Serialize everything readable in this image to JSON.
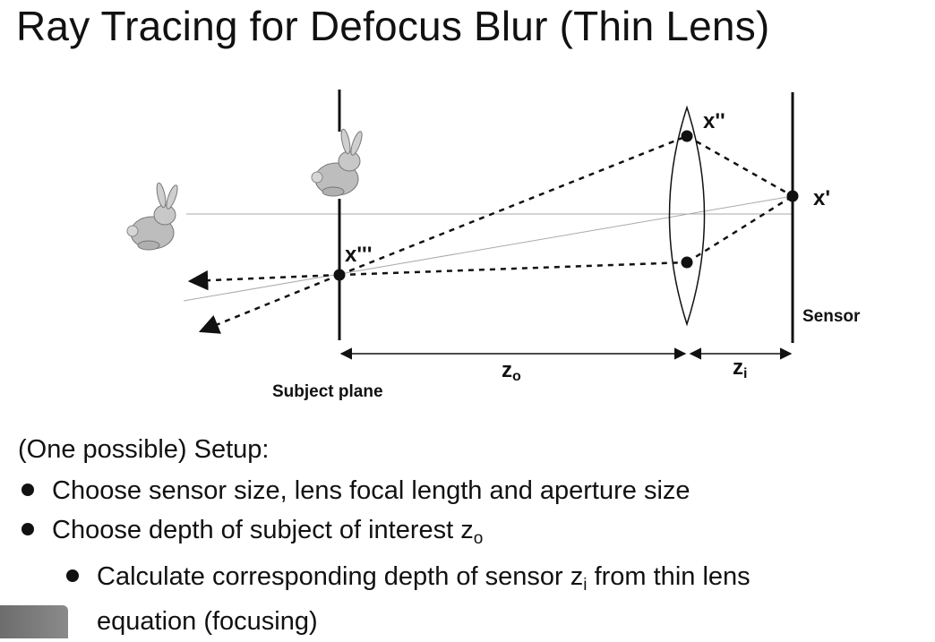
{
  "title": "Ray Tracing for Defocus Blur (Thin Lens)",
  "diagram": {
    "points": {
      "x_triple": "x'''",
      "x_double": "x''",
      "x_prime": "x'"
    },
    "labels": {
      "sensor": "Sensor",
      "subject_plane": "Subject plane",
      "z_o": "z",
      "z_o_sub": "o",
      "z_i": "z",
      "z_i_sub": "i"
    }
  },
  "text": {
    "setup": "(One possible) Setup:",
    "bullet1": "Choose sensor size, lens focal length and aperture size",
    "bullet2": "Choose depth of subject of interest z",
    "bullet2_sub": "o",
    "bullet3_a": "Calculate corresponding depth of sensor z",
    "bullet3_sub": "i",
    "bullet3_b": " from thin lens",
    "bullet3_c": "equation (focusing)"
  }
}
